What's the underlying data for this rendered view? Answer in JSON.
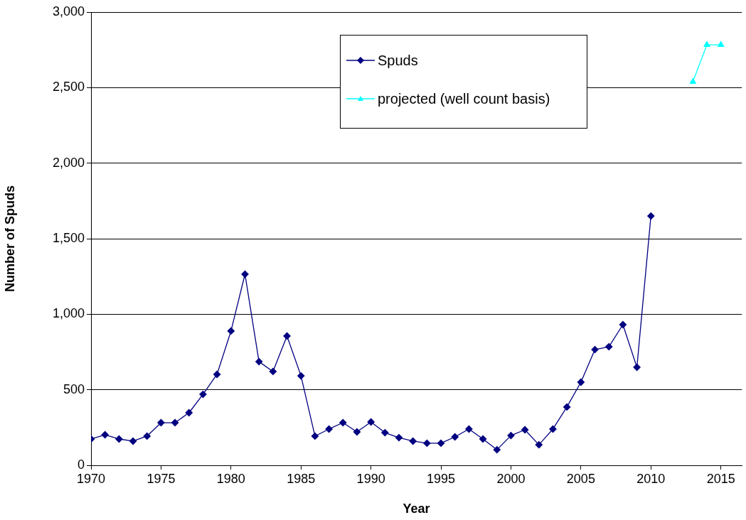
{
  "chart_data": {
    "type": "line",
    "xlabel": "Year",
    "ylabel": "Number of Spuds",
    "xlim": [
      1970,
      2016.5
    ],
    "xticks": [
      1970,
      1975,
      1980,
      1985,
      1990,
      1995,
      2000,
      2005,
      2010,
      2015
    ],
    "ylim": [
      0,
      3000
    ],
    "yticks": [
      0,
      {
        "value": 500,
        "label": "500"
      },
      {
        "value": 1000,
        "label": "1,000"
      },
      {
        "value": 1500,
        "label": "1,500"
      },
      {
        "value": 2000,
        "label": "2,000"
      },
      {
        "value": 2500,
        "label": "2,500"
      },
      {
        "value": 3000,
        "label": "3,000"
      }
    ],
    "grid": "y",
    "legend": "top",
    "line_style": "solid",
    "series": [
      {
        "name": "Spuds",
        "color": "#000080",
        "marker": "diamond",
        "x": [
          1970,
          1971,
          1972,
          1973,
          1974,
          1975,
          1976,
          1977,
          1978,
          1979,
          1980,
          1981,
          1982,
          1983,
          1984,
          1985,
          1986,
          1987,
          1988,
          1989,
          1990,
          1991,
          1992,
          1993,
          1994,
          1995,
          1996,
          1997,
          1998,
          1999,
          2000,
          2001,
          2002,
          2003,
          2004,
          2005,
          2006,
          2007,
          2008,
          2009,
          2010
        ],
        "values": [
          174,
          202,
          174,
          160,
          193,
          282,
          282,
          348,
          470,
          602,
          889,
          1265,
          686,
          621,
          856,
          592,
          193,
          240,
          282,
          221,
          287,
          216,
          183,
          160,
          146,
          146,
          188,
          240,
          174,
          103,
          197,
          235,
          136,
          240,
          386,
          550,
          766,
          785,
          931,
          649,
          1650
        ]
      },
      {
        "name": "projected (well count basis)",
        "color": "#00ffff",
        "marker": "triangle",
        "x": [
          2013,
          2014,
          2015
        ],
        "values": [
          2539,
          2783,
          2783
        ]
      }
    ]
  }
}
